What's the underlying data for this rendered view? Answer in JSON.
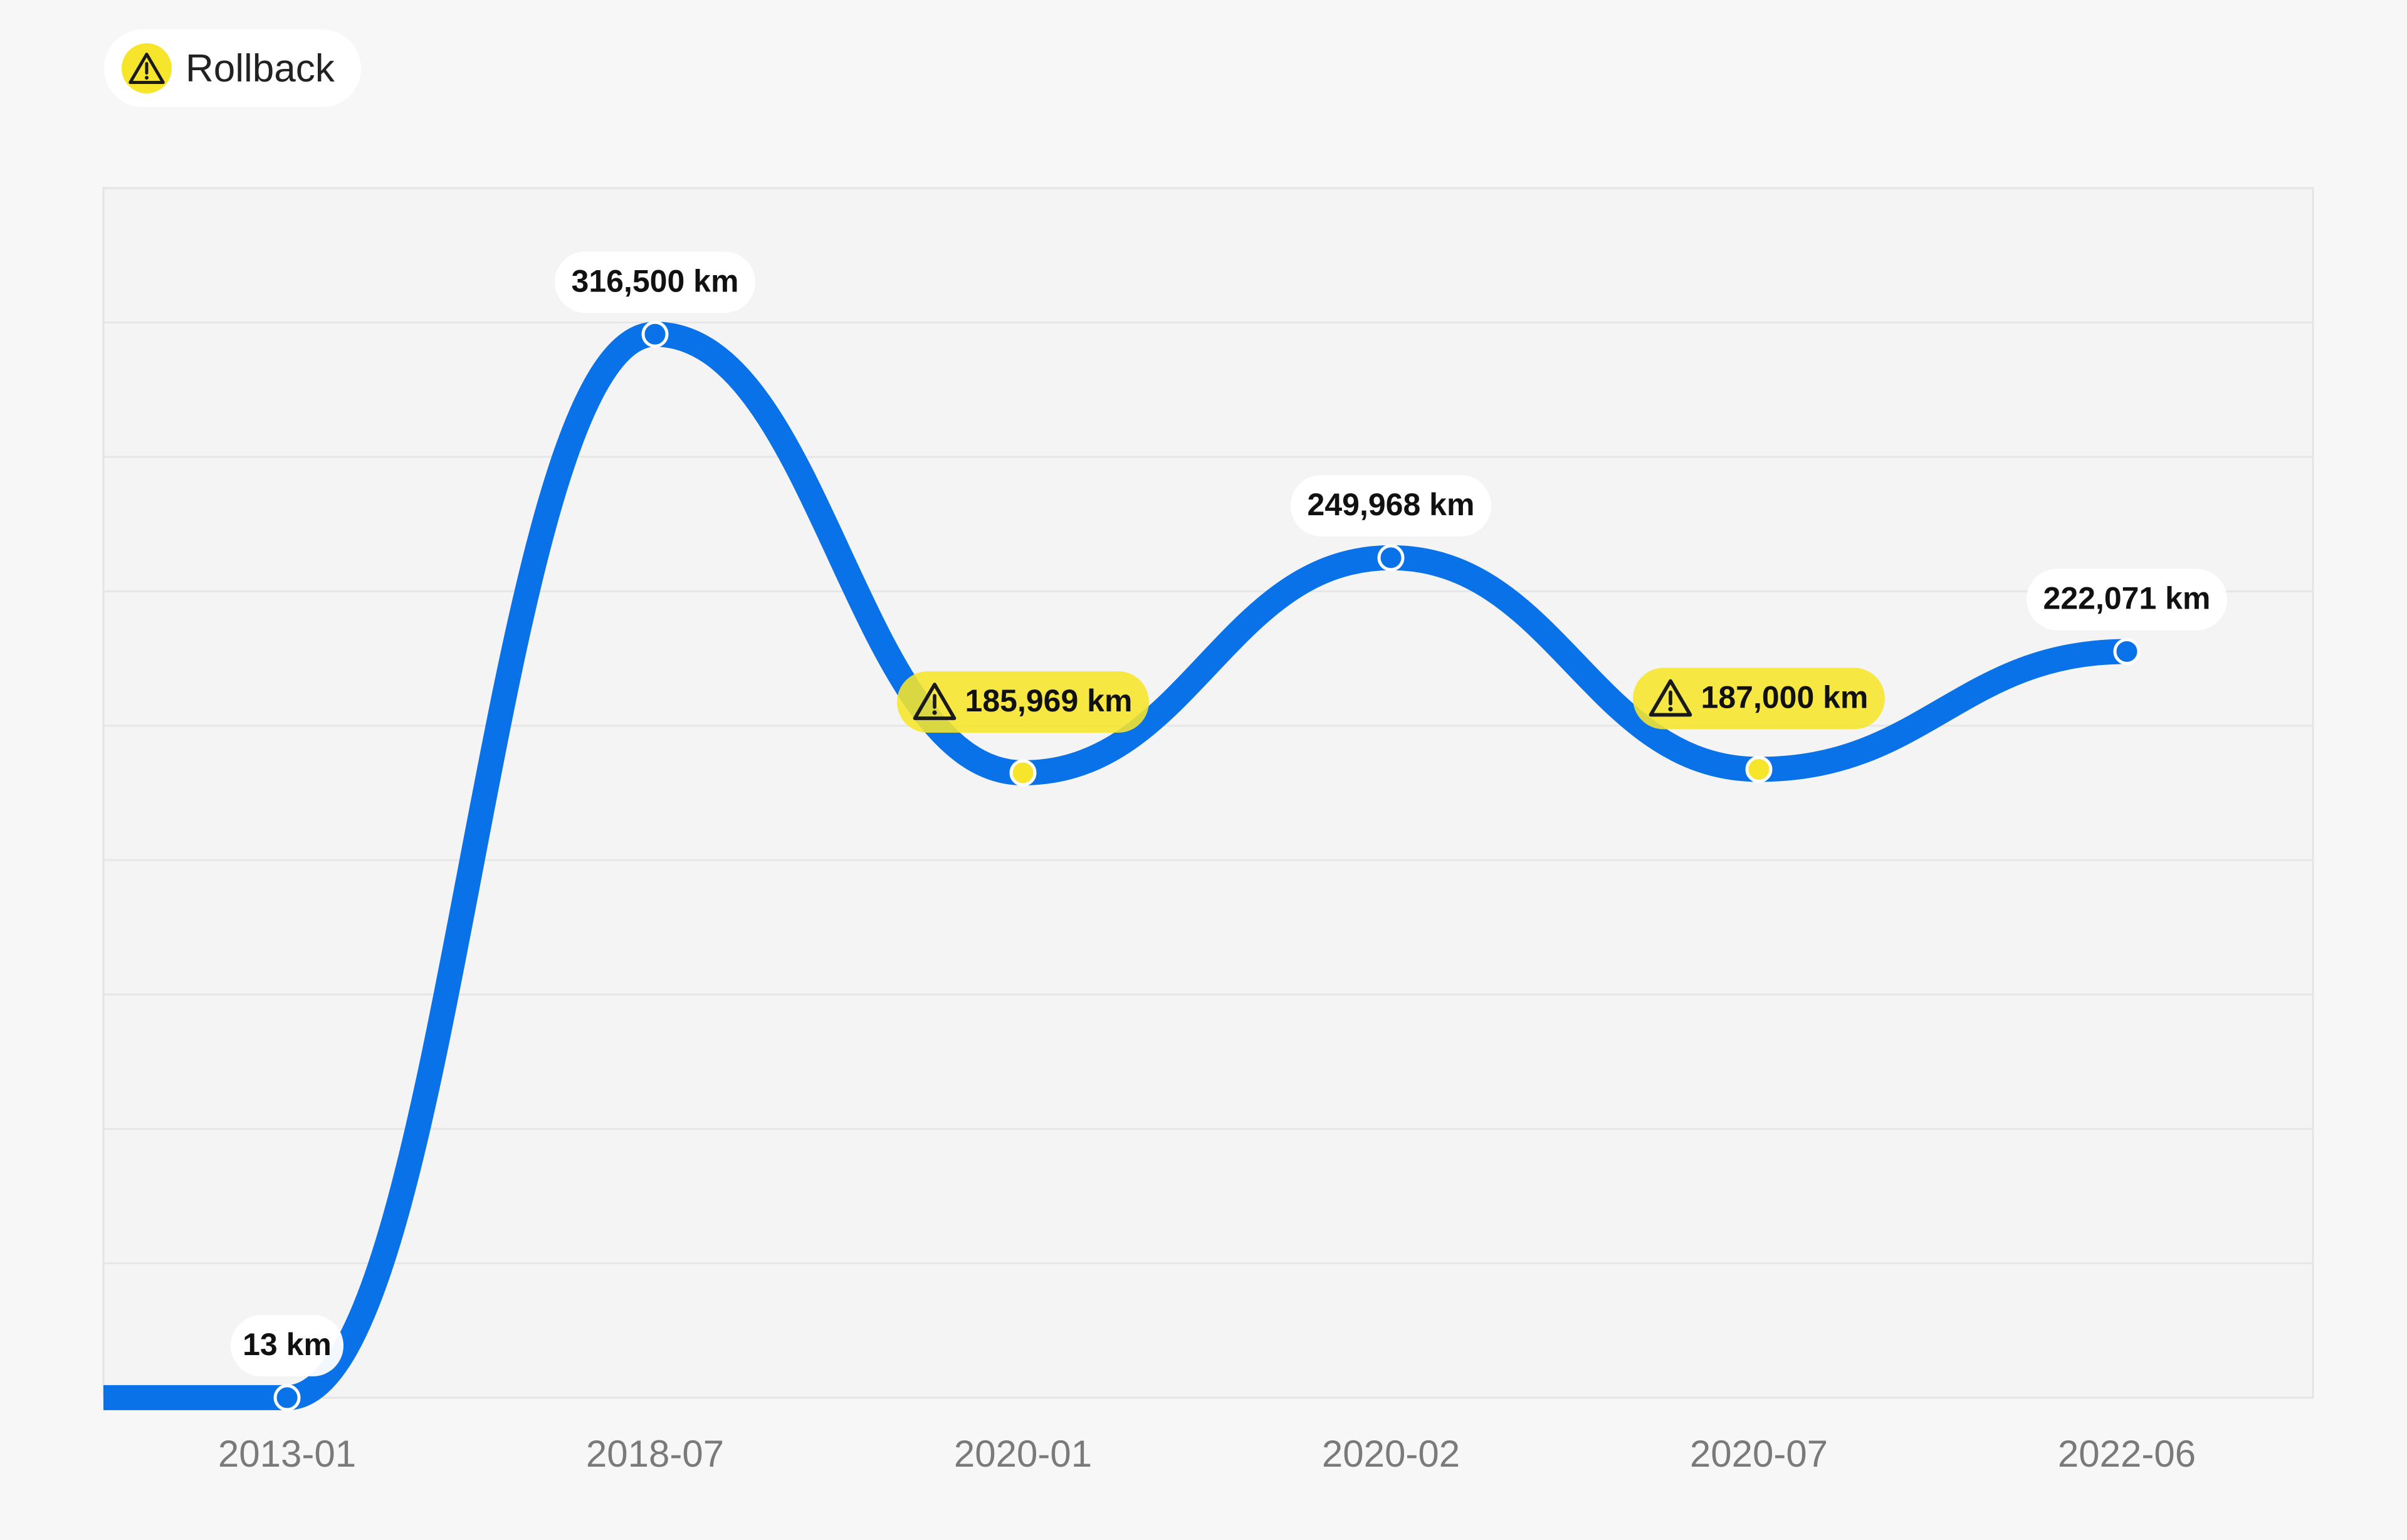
{
  "legend": {
    "label": "Rollback",
    "icon": "warning-icon"
  },
  "colors": {
    "line": "#0a72e8",
    "rollback": "#f6e52a",
    "label_bg": "#ffffff",
    "label_text": "#111111",
    "tick_text": "#7a7a7a",
    "grid": "#e6e6e6",
    "plot_bg": "#f4f4f4",
    "border": "#e4e4e4"
  },
  "chart_data": {
    "type": "line",
    "title": "",
    "xlabel": "",
    "ylabel": "",
    "unit": "km",
    "categories": [
      "2013-01",
      "2018-07",
      "2020-01",
      "2020-02",
      "2020-07",
      "2022-06"
    ],
    "series": [
      {
        "values": [
          13,
          316500,
          185969,
          249968,
          187000,
          222071
        ],
        "labels": [
          "13 km",
          "316,500 km",
          "185,969 km",
          "249,968 km",
          "187,000 km",
          "222,071 km"
        ],
        "rollback": [
          false,
          false,
          true,
          false,
          true,
          false
        ]
      }
    ],
    "ylim": [
      0,
      360000
    ],
    "grid": true,
    "legend_position": "top-left"
  }
}
